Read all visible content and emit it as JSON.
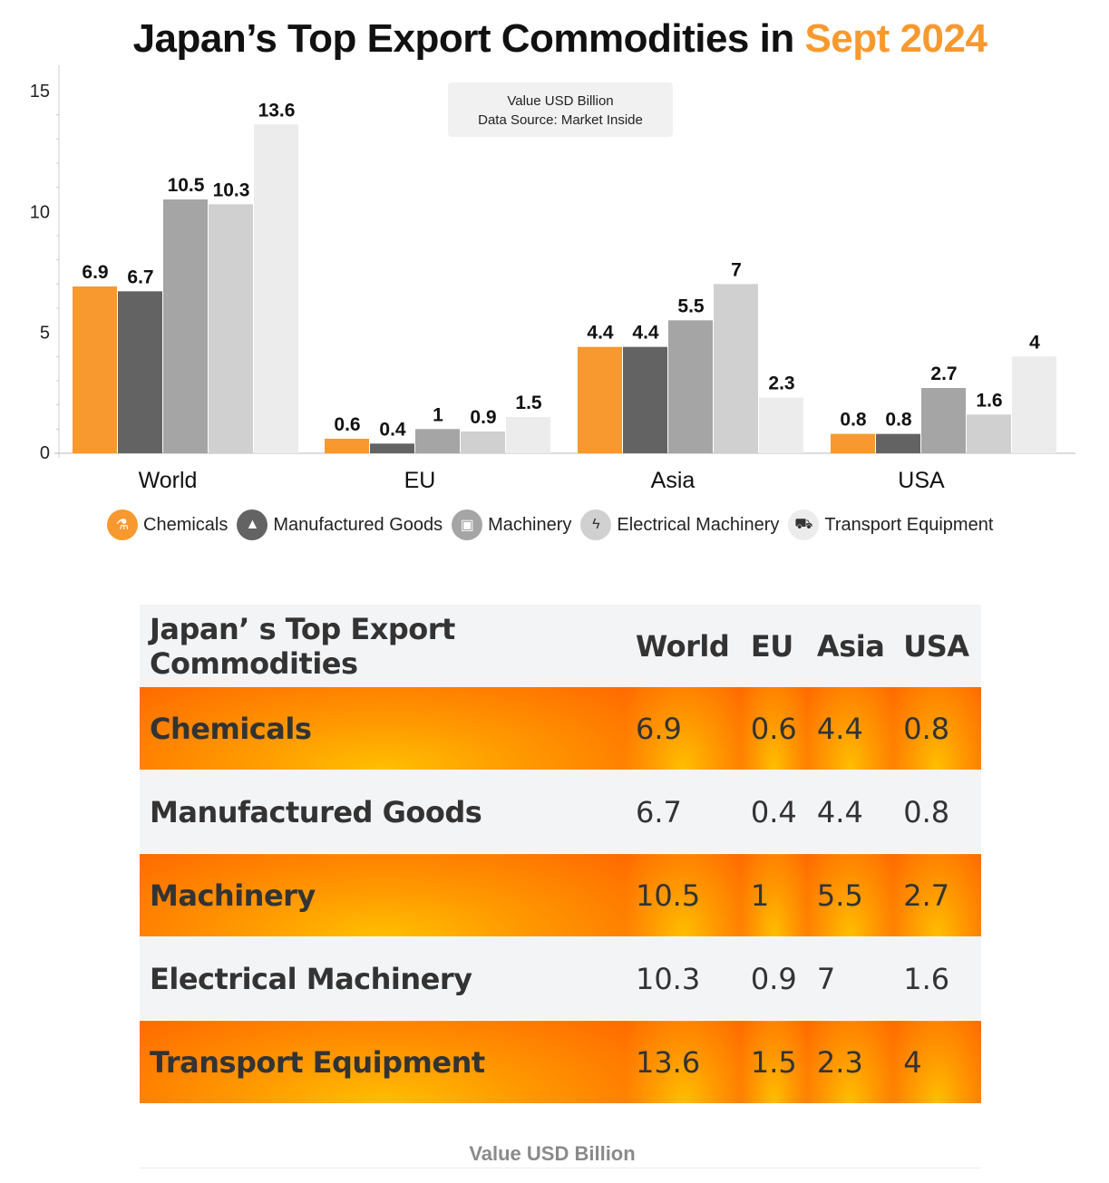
{
  "title": {
    "main": "Japan’s Top Export Commodities in",
    "highlight": "Sept 2024"
  },
  "note": {
    "line1": "Value USD Billion",
    "line2": "Data Source: Market Inside"
  },
  "colors": {
    "accent": "#f7992f",
    "Chemicals": "#f7992f",
    "Manufactured Goods": "#636363",
    "Machinery": "#a5a5a5",
    "Electrical Machinery": "#d0d0d0",
    "Transport Equipment": "#ececec"
  },
  "chart_data": {
    "type": "bar",
    "categories": [
      "World",
      "EU",
      "Asia",
      "USA"
    ],
    "series": [
      {
        "name": "Chemicals",
        "values": [
          6.9,
          0.6,
          4.4,
          0.8
        ],
        "icon": "flask-icon"
      },
      {
        "name": "Manufactured Goods",
        "values": [
          6.7,
          0.4,
          4.4,
          0.8
        ],
        "icon": "factory-icon"
      },
      {
        "name": "Machinery",
        "values": [
          10.5,
          1,
          5.5,
          2.7
        ],
        "icon": "machine-icon"
      },
      {
        "name": "Electrical Machinery",
        "values": [
          10.3,
          0.9,
          7,
          1.6
        ],
        "icon": "lightning-icon"
      },
      {
        "name": "Transport Equipment",
        "values": [
          13.6,
          1.5,
          2.3,
          4
        ],
        "icon": "truck-icon"
      }
    ],
    "yticks": [
      0,
      5,
      10,
      15
    ],
    "ylim": [
      0,
      15
    ],
    "legend": "bottom",
    "grid": false
  },
  "table": {
    "headers": [
      "Japan’ s Top Export Commodities",
      "World",
      "EU",
      "Asia",
      "USA"
    ],
    "rows": [
      [
        "Chemicals",
        "6.9",
        "0.6",
        "4.4",
        "0.8"
      ],
      [
        "Manufactured Goods",
        "6.7",
        "0.4",
        "4.4",
        "0.8"
      ],
      [
        "Machinery",
        "10.5",
        "1",
        "5.5",
        "2.7"
      ],
      [
        "Electrical Machinery",
        "10.3",
        "0.9",
        "7",
        "1.6"
      ],
      [
        "Transport Equipment",
        "13.6",
        "1.5",
        "2.3",
        "4"
      ]
    ]
  },
  "footer": "Value USD Billion"
}
